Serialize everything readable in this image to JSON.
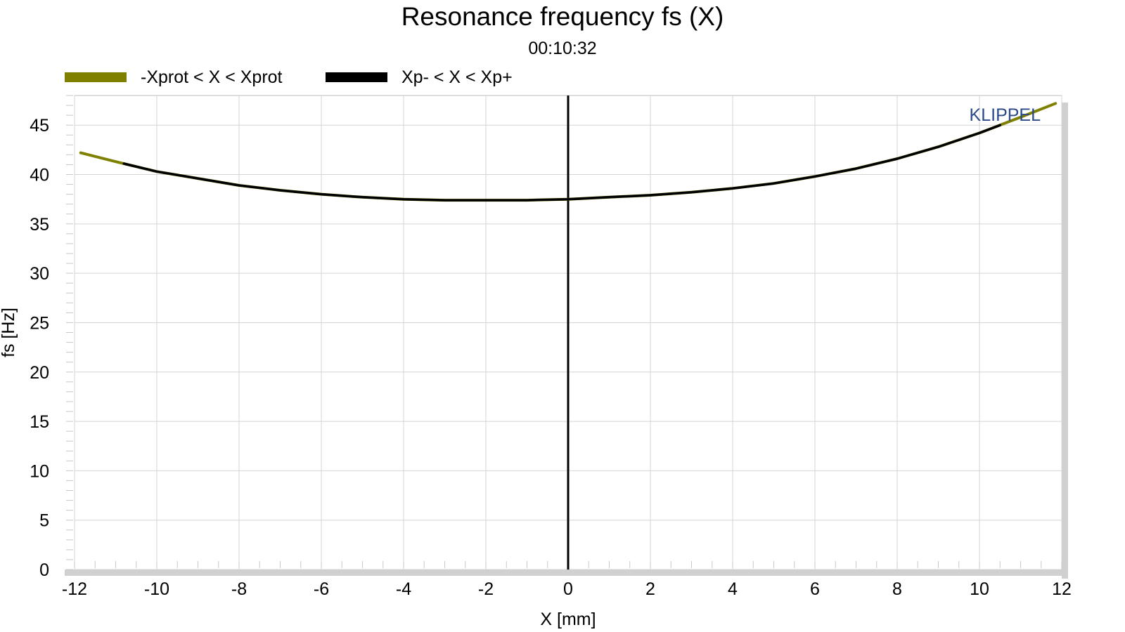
{
  "chart_data": {
    "type": "line",
    "title": "Resonance frequency fs (X)",
    "subtitle": "00:10:32",
    "xlabel": "X [mm]",
    "ylabel": "fs [Hz]",
    "xlim": [
      -12,
      12
    ],
    "ylim": [
      0,
      48
    ],
    "xticks": [
      -12,
      -10,
      -8,
      -6,
      -4,
      -2,
      0,
      2,
      4,
      6,
      8,
      10,
      12
    ],
    "yticks": [
      0,
      5,
      10,
      15,
      20,
      25,
      30,
      35,
      40,
      45
    ],
    "grid": true,
    "legend_position": "top-left",
    "watermark": "KLIPPEL",
    "watermark_color": "#2b4a8c",
    "series": [
      {
        "name": "-Xprot < X < Xprot",
        "color": "#808000",
        "x": [
          -11.85,
          -11.0,
          -10.0,
          -9.0,
          -8.0,
          -7.0,
          -6.0,
          -5.0,
          -4.0,
          -3.0,
          -2.0,
          -1.0,
          0.0,
          1.0,
          2.0,
          3.0,
          4.0,
          5.0,
          6.0,
          7.0,
          8.0,
          9.0,
          10.0,
          11.0,
          11.85
        ],
        "y": [
          42.2,
          41.3,
          40.3,
          39.6,
          38.9,
          38.4,
          38.0,
          37.7,
          37.5,
          37.4,
          37.4,
          37.4,
          37.5,
          37.7,
          37.9,
          38.2,
          38.6,
          39.1,
          39.8,
          40.6,
          41.6,
          42.8,
          44.2,
          45.8,
          47.2
        ]
      },
      {
        "name": "Xp- < X < Xp+",
        "color": "#000000",
        "x": [
          -10.8,
          -10.0,
          -9.0,
          -8.0,
          -7.0,
          -6.0,
          -5.0,
          -4.0,
          -3.0,
          -2.0,
          -1.0,
          0.0,
          1.0,
          2.0,
          3.0,
          4.0,
          5.0,
          6.0,
          7.0,
          8.0,
          9.0,
          10.0,
          10.5
        ],
        "y": [
          41.1,
          40.3,
          39.6,
          38.9,
          38.4,
          38.0,
          37.7,
          37.5,
          37.4,
          37.4,
          37.4,
          37.5,
          37.7,
          37.9,
          38.2,
          38.6,
          39.1,
          39.8,
          40.6,
          41.6,
          42.8,
          44.2,
          45.0
        ]
      }
    ],
    "marker_line_x": 0
  }
}
